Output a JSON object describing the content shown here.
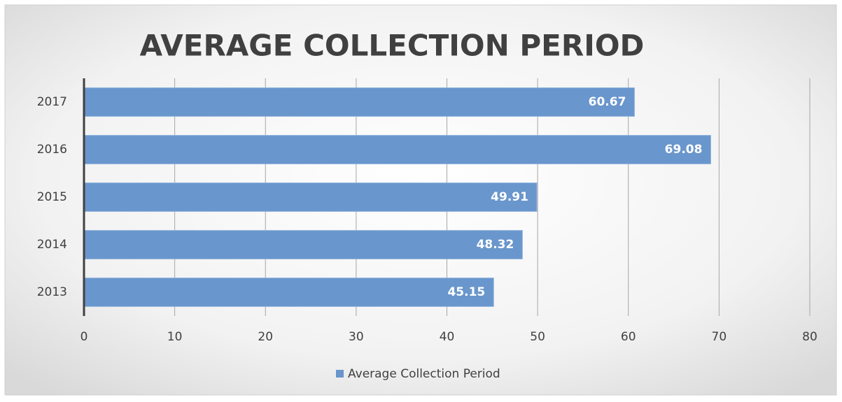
{
  "chart_data": {
    "type": "hbar",
    "title": "AVERAGE COLLECTION PERIOD",
    "categories": [
      "2013",
      "2014",
      "2015",
      "2016",
      "2017"
    ],
    "series": [
      {
        "name": "Average Collection Period",
        "color": "#6996cc",
        "values": [
          45.15,
          48.32,
          49.91,
          69.08,
          60.67
        ]
      }
    ],
    "xlim": [
      0,
      80
    ],
    "xticks": [
      0,
      10,
      20,
      30,
      40,
      50,
      60,
      70,
      80
    ],
    "grid": true,
    "legend": "bottom"
  }
}
